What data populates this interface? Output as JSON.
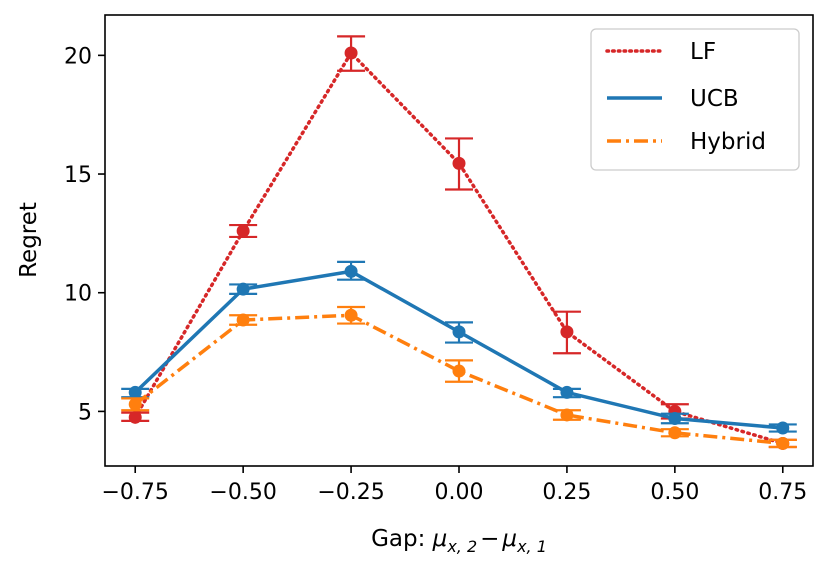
{
  "chart_data": {
    "type": "line",
    "title": "",
    "xlabel_prefix": "Gap: ",
    "xlabel_mu": "μ",
    "xlabel_sub2": "x, 2",
    "xlabel_minus": "−",
    "xlabel_sub1": "x, 1",
    "ylabel": "Regret",
    "x": [
      -0.75,
      -0.5,
      -0.25,
      0.0,
      0.25,
      0.5,
      0.75
    ],
    "xlim": [
      -0.82,
      0.82
    ],
    "ylim": [
      2.7,
      21.7
    ],
    "xticks": [
      -0.75,
      -0.5,
      -0.25,
      0.0,
      0.25,
      0.5,
      0.75
    ],
    "xtick_labels": [
      "−0.75",
      "−0.50",
      "−0.25",
      "0.00",
      "0.25",
      "0.50",
      "0.75"
    ],
    "yticks": [
      5,
      10,
      15,
      20
    ],
    "ytick_labels": [
      "5",
      "10",
      "15",
      "20"
    ],
    "grid": false,
    "legend_position": "top-right",
    "series": [
      {
        "name": "LF",
        "color": "#d62728",
        "line_style": "dotted",
        "values": [
          4.75,
          12.6,
          20.1,
          15.45,
          8.35,
          5.0,
          3.65
        ],
        "err_low": [
          4.6,
          12.35,
          19.35,
          14.35,
          7.45,
          4.7,
          3.5
        ],
        "err_high": [
          4.95,
          12.85,
          20.8,
          16.5,
          9.2,
          5.3,
          3.8
        ]
      },
      {
        "name": "UCB",
        "color": "#1f77b4",
        "line_style": "solid",
        "values": [
          5.8,
          10.15,
          10.9,
          8.35,
          5.8,
          4.7,
          4.3
        ],
        "err_low": [
          5.6,
          9.95,
          10.55,
          7.9,
          5.6,
          4.5,
          4.15
        ],
        "err_high": [
          5.95,
          10.35,
          11.3,
          8.75,
          5.95,
          4.9,
          4.45
        ]
      },
      {
        "name": "Hybrid",
        "color": "#ff7f0e",
        "line_style": "dashdot",
        "values": [
          5.3,
          8.85,
          9.05,
          6.7,
          4.85,
          4.1,
          3.65
        ],
        "err_low": [
          5.05,
          8.65,
          8.7,
          6.25,
          4.65,
          3.95,
          3.5
        ],
        "err_high": [
          5.55,
          9.05,
          9.4,
          7.15,
          5.05,
          4.25,
          3.8
        ]
      }
    ]
  }
}
